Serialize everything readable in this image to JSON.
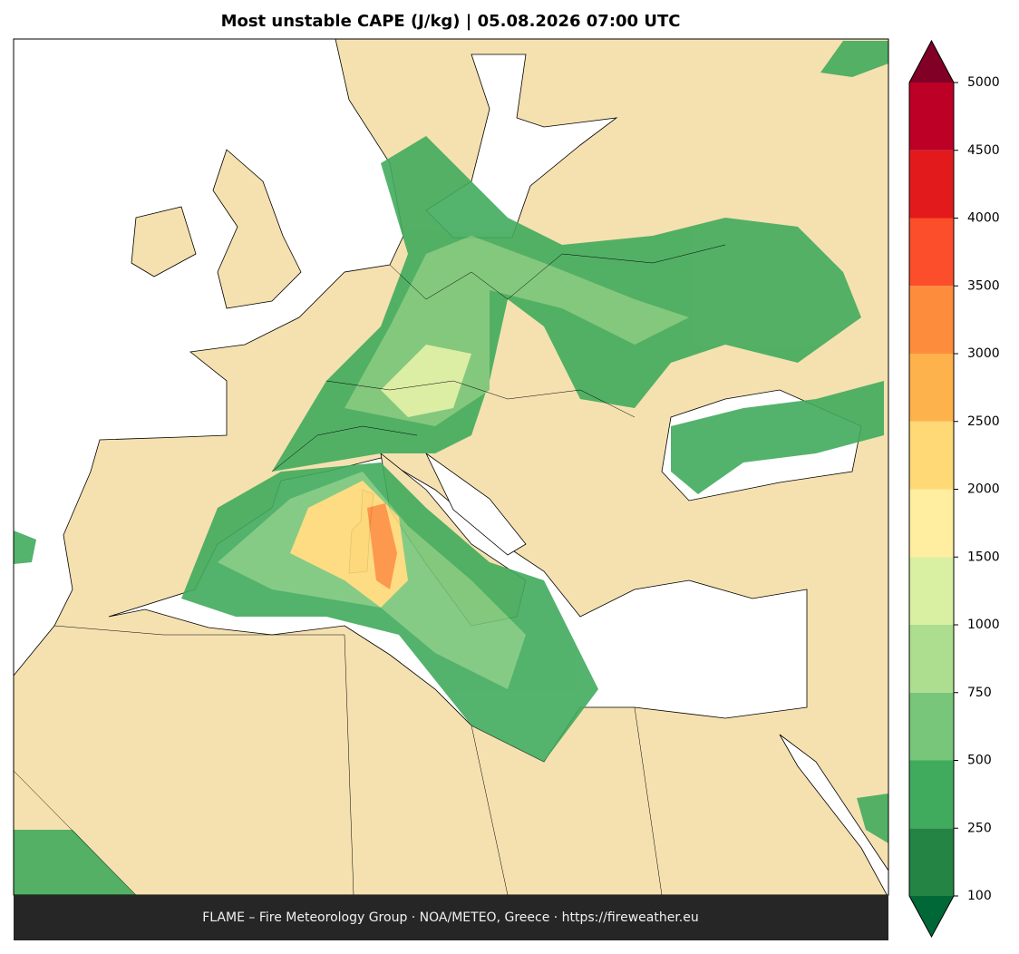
{
  "title": "Most unstable CAPE (J/kg)  |  05.08.2026 07:00 UTC",
  "footer": "FLAME – Fire Meteorology Group · NOA/METEO, Greece · https://fireweather.eu",
  "colorbar": {
    "levels": [
      100,
      250,
      500,
      750,
      1000,
      1500,
      2000,
      2500,
      3000,
      3500,
      4000,
      4500,
      5000
    ],
    "colors": [
      "#238443",
      "#41ab5d",
      "#78c679",
      "#addd8e",
      "#d9f0a3",
      "#ffeda0",
      "#fed976",
      "#feb24c",
      "#fd8d3c",
      "#fc4e2a",
      "#e31a1c",
      "#bd0026"
    ],
    "under_color": "#006837",
    "over_color": "#800026"
  }
}
